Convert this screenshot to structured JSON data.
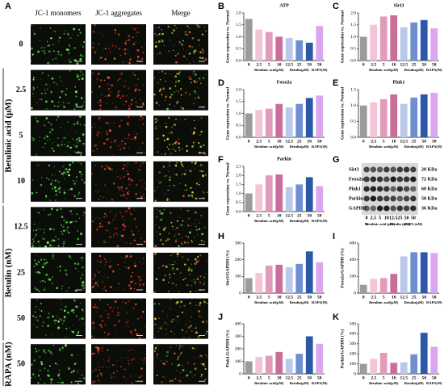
{
  "panel_a": {
    "label": "A",
    "columns": [
      "JC-1 monomers",
      "JC-1 aggregates",
      "Merge"
    ],
    "rows": [
      "0",
      "2.5",
      "5",
      "10",
      "12.5",
      "25",
      "50",
      "50"
    ],
    "groups": [
      "Betulinic acid (μM)",
      "Betulin (nM)",
      "RAPA (nM)"
    ]
  },
  "chart_data": [
    {
      "type": "bar",
      "label": "B",
      "title": "ATP",
      "y_label": "Gene expression vs. Normal",
      "categories": [
        "0",
        "2.5",
        "5",
        "10",
        "12.5",
        "25",
        "50",
        "50"
      ],
      "groups": [
        "Betulinic acid(μM)",
        "Betulin(μM)",
        "RAPA(M)"
      ],
      "values": [
        1.75,
        1.3,
        1.2,
        1.0,
        0.95,
        0.85,
        0.75,
        1.45
      ],
      "colors": [
        "#9b9b9b",
        "#f2c4d6",
        "#e39bbb",
        "#c96e9a",
        "#b8c9ec",
        "#6f8fd1",
        "#2d58a8",
        "#d9a6ef"
      ],
      "ylim": [
        0,
        2.0
      ],
      "yticks": [
        {
          "value": 0,
          "label": "0.0"
        },
        0.5,
        {
          "value": 1,
          "label": "1.0"
        },
        1.5,
        {
          "value": 2,
          "label": "2.0"
        }
      ]
    },
    {
      "type": "bar",
      "label": "C",
      "title": "Sirt3",
      "y_label": "Gene expression vs. Normal",
      "categories": [
        "0",
        "2.5",
        "5",
        "10",
        "12.5",
        "25",
        "50",
        "50"
      ],
      "groups": [
        "Betulinic acid(μM)",
        "Betulin(μM)",
        "RAPA(M)"
      ],
      "values": [
        1.0,
        1.5,
        1.85,
        1.9,
        1.4,
        1.6,
        1.7,
        1.35
      ],
      "colors": [
        "#9b9b9b",
        "#f2c4d6",
        "#e39bbb",
        "#c96e9a",
        "#b8c9ec",
        "#6f8fd1",
        "#2d58a8",
        "#d9a6ef"
      ],
      "ylim": [
        0,
        2.0
      ],
      "yticks": [
        {
          "value": 0,
          "label": "0.0"
        },
        0.5,
        {
          "value": 1,
          "label": "1.0"
        },
        1.5,
        {
          "value": 2,
          "label": "2.0"
        }
      ]
    },
    {
      "type": "bar",
      "label": "D",
      "title": "Foxo2a",
      "y_label": "Gene expression vs. Normal",
      "categories": [
        "0",
        "2.5",
        "5",
        "10",
        "12.5",
        "25",
        "50",
        "50"
      ],
      "groups": [
        "Betulinic acid(μM)",
        "Betulin(μM)",
        "RAPA(M)"
      ],
      "values": [
        1.0,
        1.15,
        1.2,
        1.4,
        1.25,
        1.4,
        1.65,
        1.75
      ],
      "colors": [
        "#9b9b9b",
        "#f2c4d6",
        "#e39bbb",
        "#c96e9a",
        "#b8c9ec",
        "#6f8fd1",
        "#2d58a8",
        "#d9a6ef"
      ],
      "ylim": [
        0,
        2.0
      ],
      "yticks": [
        {
          "value": 0,
          "label": "0.0"
        },
        0.5,
        {
          "value": 1,
          "label": "1.0"
        },
        1.5,
        {
          "value": 2,
          "label": "2.0"
        }
      ]
    },
    {
      "type": "bar",
      "label": "E",
      "title": "Pink1",
      "y_label": "Gene expression vs. Normal",
      "categories": [
        "0",
        "2.5",
        "5",
        "10",
        "12.5",
        "25",
        "50",
        "50"
      ],
      "groups": [
        "Betulinic acid(μM)",
        "Betulin(μM)",
        "RAPA(M)"
      ],
      "values": [
        1.0,
        1.1,
        1.2,
        1.35,
        1.05,
        1.25,
        1.35,
        1.4
      ],
      "colors": [
        "#9b9b9b",
        "#f2c4d6",
        "#e39bbb",
        "#c96e9a",
        "#b8c9ec",
        "#6f8fd1",
        "#2d58a8",
        "#d9a6ef"
      ],
      "ylim": [
        0,
        1.5
      ],
      "yticks": [
        {
          "value": 0,
          "label": "0.0"
        },
        0.5,
        {
          "value": 1,
          "label": "1.0"
        },
        1.5
      ]
    },
    {
      "type": "bar",
      "label": "F",
      "title": "Parkin",
      "y_label": "Gene expression vs. Normal",
      "categories": [
        "0",
        "2.5",
        "5",
        "10",
        "12.5",
        "25",
        "50",
        "50"
      ],
      "groups": [
        "Betulinic acid(μM)",
        "Betulin(μM)",
        "RAPA(M)"
      ],
      "values": [
        1.0,
        1.5,
        2.0,
        2.05,
        1.35,
        1.5,
        1.9,
        1.4
      ],
      "colors": [
        "#9b9b9b",
        "#f2c4d6",
        "#e39bbb",
        "#c96e9a",
        "#b8c9ec",
        "#6f8fd1",
        "#2d58a8",
        "#d9a6ef"
      ],
      "ylim": [
        0,
        2.5
      ],
      "yticks": [
        {
          "value": 0,
          "label": "0.0"
        },
        0.5,
        {
          "value": 1,
          "label": "1.0"
        },
        1.5,
        {
          "value": 2,
          "label": "2.0"
        },
        2.5
      ]
    },
    {
      "type": "bar",
      "label": "H",
      "y_label": "Sirt3/GAPDH (%)",
      "categories": [
        "0",
        "2.5",
        "5",
        "10",
        "12.5",
        "25",
        "50",
        "50"
      ],
      "groups": [
        "Betulinic acid(μM)",
        "Betulin(μM)",
        "RAPA(M)"
      ],
      "values": [
        90,
        120,
        165,
        170,
        155,
        175,
        250,
        185
      ],
      "colors": [
        "#9b9b9b",
        "#f2c4d6",
        "#e39bbb",
        "#c96e9a",
        "#b8c9ec",
        "#6f8fd1",
        "#2d58a8",
        "#d9a6ef"
      ],
      "ylim": [
        0,
        300
      ],
      "yticks": [
        0,
        100,
        200,
        300
      ]
    },
    {
      "type": "bar",
      "label": "I",
      "y_label": "Foxo2a/GAPDH (%)",
      "categories": [
        "0",
        "2.5",
        "5",
        "10",
        "12.5",
        "25",
        "50",
        "50"
      ],
      "groups": [
        "Betulinic acid(μM)",
        "Betulin(μM)",
        "RAPA(M)"
      ],
      "values": [
        100,
        170,
        180,
        230,
        440,
        490,
        490,
        480
      ],
      "colors": [
        "#9b9b9b",
        "#f2c4d6",
        "#e39bbb",
        "#c96e9a",
        "#b8c9ec",
        "#6f8fd1",
        "#2d58a8",
        "#d9a6ef"
      ],
      "ylim": [
        0,
        600
      ],
      "yticks": [
        0,
        200,
        400,
        600
      ]
    },
    {
      "type": "bar",
      "label": "J",
      "y_label": "Pink1/GAPDH (%)",
      "categories": [
        "0",
        "2.5",
        "5",
        "10",
        "12.5",
        "25",
        "50",
        "50"
      ],
      "groups": [
        "Betulinic acid(μM)",
        "Betulin(μM)",
        "RAPA(M)"
      ],
      "values": [
        100,
        135,
        145,
        175,
        120,
        160,
        300,
        240
      ],
      "colors": [
        "#9b9b9b",
        "#f2c4d6",
        "#e39bbb",
        "#c96e9a",
        "#b8c9ec",
        "#6f8fd1",
        "#2d58a8",
        "#d9a6ef"
      ],
      "ylim": [
        0,
        400
      ],
      "yticks": [
        0,
        100,
        200,
        300,
        400
      ]
    },
    {
      "type": "bar",
      "label": "K",
      "y_label": "Parkin/GAPDH (%)",
      "categories": [
        "0",
        "2.5",
        "5",
        "10",
        "12.5",
        "25",
        "50",
        "50"
      ],
      "groups": [
        "Betulinic acid(μM)",
        "Betulin(μM)",
        "RAPA(M)"
      ],
      "values": [
        100,
        150,
        210,
        110,
        115,
        195,
        410,
        270
      ],
      "colors": [
        "#9b9b9b",
        "#f2c4d6",
        "#e39bbb",
        "#c96e9a",
        "#b8c9ec",
        "#6f8fd1",
        "#2d58a8",
        "#d9a6ef"
      ],
      "ylim": [
        0,
        500
      ],
      "yticks": [
        0,
        100,
        200,
        300,
        400,
        500
      ]
    }
  ],
  "blot": {
    "label": "G",
    "proteins": [
      "Sirt3",
      "Foxo2a",
      "Pink1",
      "Parkin",
      "GAPDH"
    ],
    "sizes": [
      "28 KDa",
      "72 KDa",
      "60 KDa",
      "50 KDa",
      "36 KDa"
    ],
    "lanes": [
      "0",
      "2.5",
      "5",
      "10",
      "12.5",
      "25",
      "50",
      "50"
    ],
    "groups": [
      "N",
      "Betulinic acid (μM)",
      "Betulin (μM)",
      "RAPA (nM)"
    ]
  }
}
